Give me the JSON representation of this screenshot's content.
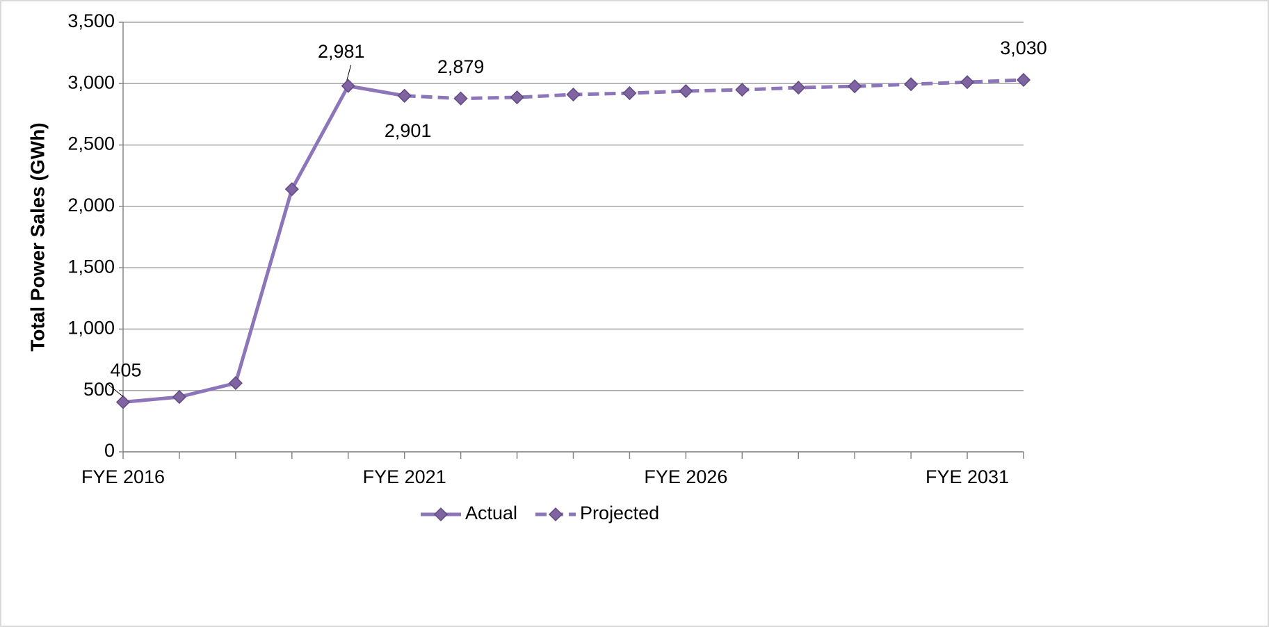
{
  "chart_data": {
    "type": "line",
    "y_label": "Total Power Sales (GWh)",
    "categories": [
      "FYE 2016",
      null,
      null,
      null,
      null,
      "FYE 2021",
      null,
      null,
      null,
      null,
      "FYE 2026",
      null,
      null,
      null,
      null,
      "FYE 2031",
      null
    ],
    "series": [
      {
        "name": "Actual",
        "color": "#8064a2",
        "dashed": false,
        "values": [
          405,
          447,
          560,
          2140,
          2981,
          2901,
          null,
          null,
          null,
          null,
          null,
          null,
          null,
          null,
          null,
          null,
          null
        ],
        "value_labels": [
          "405",
          null,
          null,
          null,
          "2,981",
          "2,901",
          null,
          null,
          null,
          null,
          null,
          null,
          null,
          null,
          null,
          null,
          null
        ]
      },
      {
        "name": "Projected",
        "color": "#8064a2",
        "dashed": true,
        "values": [
          null,
          null,
          null,
          null,
          null,
          2901,
          2879,
          2888,
          2911,
          2922,
          2939,
          2950,
          2967,
          2978,
          2995,
          3012,
          3030
        ],
        "value_labels": [
          null,
          null,
          null,
          null,
          null,
          null,
          "2,879",
          null,
          null,
          null,
          null,
          null,
          null,
          null,
          null,
          null,
          "3,030"
        ]
      }
    ],
    "ylim": [
      0,
      3500
    ],
    "yticks": [
      0,
      500,
      {
        "value": 1000,
        "label": "1,000"
      },
      {
        "value": 1500,
        "label": "1,500"
      },
      {
        "value": 2000,
        "label": "2,000"
      },
      {
        "value": 2500,
        "label": "2,500"
      },
      {
        "value": 3000,
        "label": "3,000"
      },
      {
        "value": 3500,
        "label": "3,500"
      }
    ],
    "grid": true,
    "legend": "bottom"
  }
}
